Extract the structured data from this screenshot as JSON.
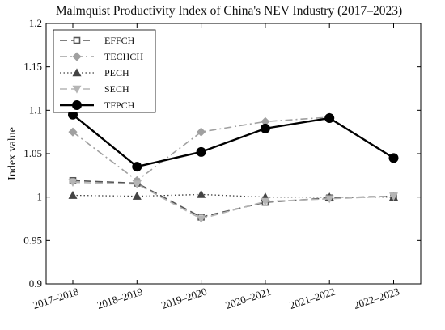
{
  "chart_data": {
    "type": "line",
    "title": "Malmquist Productivity Index of China's NEV Industry (2017–2023)",
    "xlabel": "",
    "ylabel": "Index value",
    "categories": [
      "2017–2018",
      "2018–2019",
      "2019–2020",
      "2020–2021",
      "2021–2022",
      "2022–2023"
    ],
    "ylim": [
      0.9,
      1.2
    ],
    "yticks": [
      0.9,
      0.95,
      1,
      1.05,
      1.1,
      1.15,
      1.2
    ],
    "ytick_labels": [
      "0.9",
      "0.95",
      "1",
      "1.05",
      "1.1",
      "1.15",
      "1.2"
    ],
    "grid": false,
    "legend_position": "top-left",
    "series": [
      {
        "name": "EFFCH",
        "values": [
          1.019,
          1.016,
          0.977,
          0.994,
          0.999,
          1.001
        ],
        "color": "#555555",
        "line_style": "dashed",
        "marker": "square-open"
      },
      {
        "name": "TECHCH",
        "values": [
          1.075,
          1.019,
          1.075,
          1.087,
          1.092,
          null
        ],
        "color": "#a0a0a0",
        "line_style": "dash-dot",
        "marker": "diamond"
      },
      {
        "name": "PECH",
        "values": [
          1.002,
          1.001,
          1.003,
          1.0,
          1.0,
          1.0
        ],
        "color": "#444444",
        "line_style": "dotted",
        "marker": "triangle-up"
      },
      {
        "name": "SECH",
        "values": [
          1.017,
          1.015,
          0.975,
          0.995,
          0.998,
          1.001
        ],
        "color": "#b5b5b5",
        "line_style": "dashed",
        "marker": "triangle-down"
      },
      {
        "name": "TFPCH",
        "values": [
          1.095,
          1.035,
          1.052,
          1.079,
          1.091,
          1.045
        ],
        "color": "#000000",
        "line_style": "solid",
        "marker": "circle-filled"
      }
    ]
  }
}
